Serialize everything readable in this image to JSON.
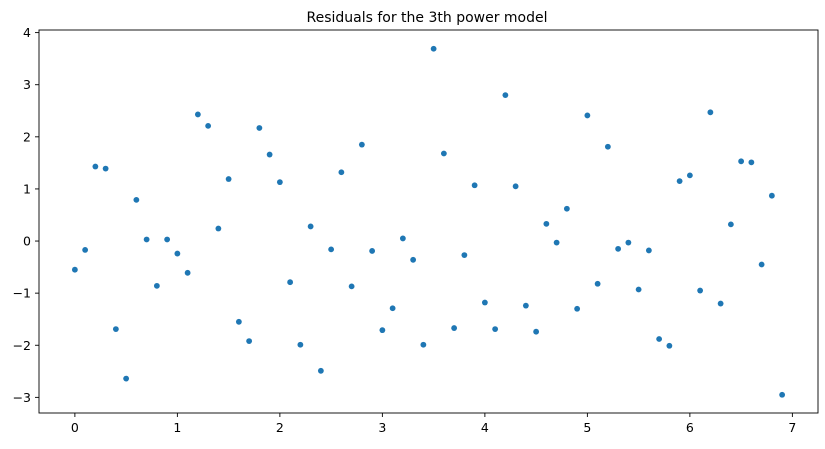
{
  "chart_data": {
    "type": "scatter",
    "title": "Residuals for the 3th power model",
    "xlabel": "",
    "ylabel": "",
    "xlim": [
      -0.35,
      7.25
    ],
    "ylim": [
      -3.3,
      4.05
    ],
    "xticks": [
      0,
      1,
      2,
      3,
      4,
      5,
      6,
      7
    ],
    "yticks": [
      -3,
      -2,
      -1,
      0,
      1,
      2,
      3,
      4
    ],
    "grid": false,
    "legend": "none",
    "marker_color": "#1f77b4",
    "series": [
      {
        "x": [
          0.0,
          0.1,
          0.2,
          0.3,
          0.4,
          0.5,
          0.6,
          0.7,
          0.8,
          0.9,
          1.0,
          1.1,
          1.2,
          1.3,
          1.4,
          1.5,
          1.6,
          1.7,
          1.8,
          1.9,
          2.0,
          2.1,
          2.2,
          2.3,
          2.4,
          2.5,
          2.6,
          2.7,
          2.8,
          2.9,
          3.0,
          3.1,
          3.2,
          3.3,
          3.4,
          3.5,
          3.6,
          3.7,
          3.8,
          3.9,
          4.0,
          4.1,
          4.2,
          4.3,
          4.4,
          4.5,
          4.6,
          4.7,
          4.8,
          4.9,
          5.0,
          5.1,
          5.2,
          5.3,
          5.4,
          5.5,
          5.6,
          5.7,
          5.8,
          5.9,
          6.0,
          6.1,
          6.2,
          6.3,
          6.4,
          6.5,
          6.6,
          6.7,
          6.8,
          6.9
        ],
        "y": [
          -0.55,
          -0.17,
          1.43,
          1.39,
          -1.69,
          -2.64,
          0.79,
          0.03,
          -0.86,
          0.03,
          -0.24,
          -0.61,
          2.43,
          2.21,
          0.24,
          1.19,
          -1.55,
          -1.92,
          2.17,
          1.66,
          1.13,
          -0.79,
          -1.99,
          0.28,
          -2.49,
          -0.16,
          1.32,
          -0.87,
          1.85,
          -0.19,
          -1.71,
          -1.29,
          0.05,
          -0.36,
          -1.99,
          3.69,
          1.68,
          -1.67,
          -0.27,
          1.07,
          -1.18,
          -1.69,
          2.8,
          1.05,
          -1.24,
          -1.74,
          0.33,
          -0.03,
          0.62,
          -1.3,
          2.41,
          -0.82,
          1.81,
          -0.15,
          -0.03,
          -0.93,
          -0.18,
          -1.88,
          -2.01,
          1.15,
          1.26,
          -0.95,
          2.47,
          -1.2,
          0.32,
          1.53,
          1.51,
          -0.45,
          0.87,
          -2.95
        ]
      }
    ]
  }
}
